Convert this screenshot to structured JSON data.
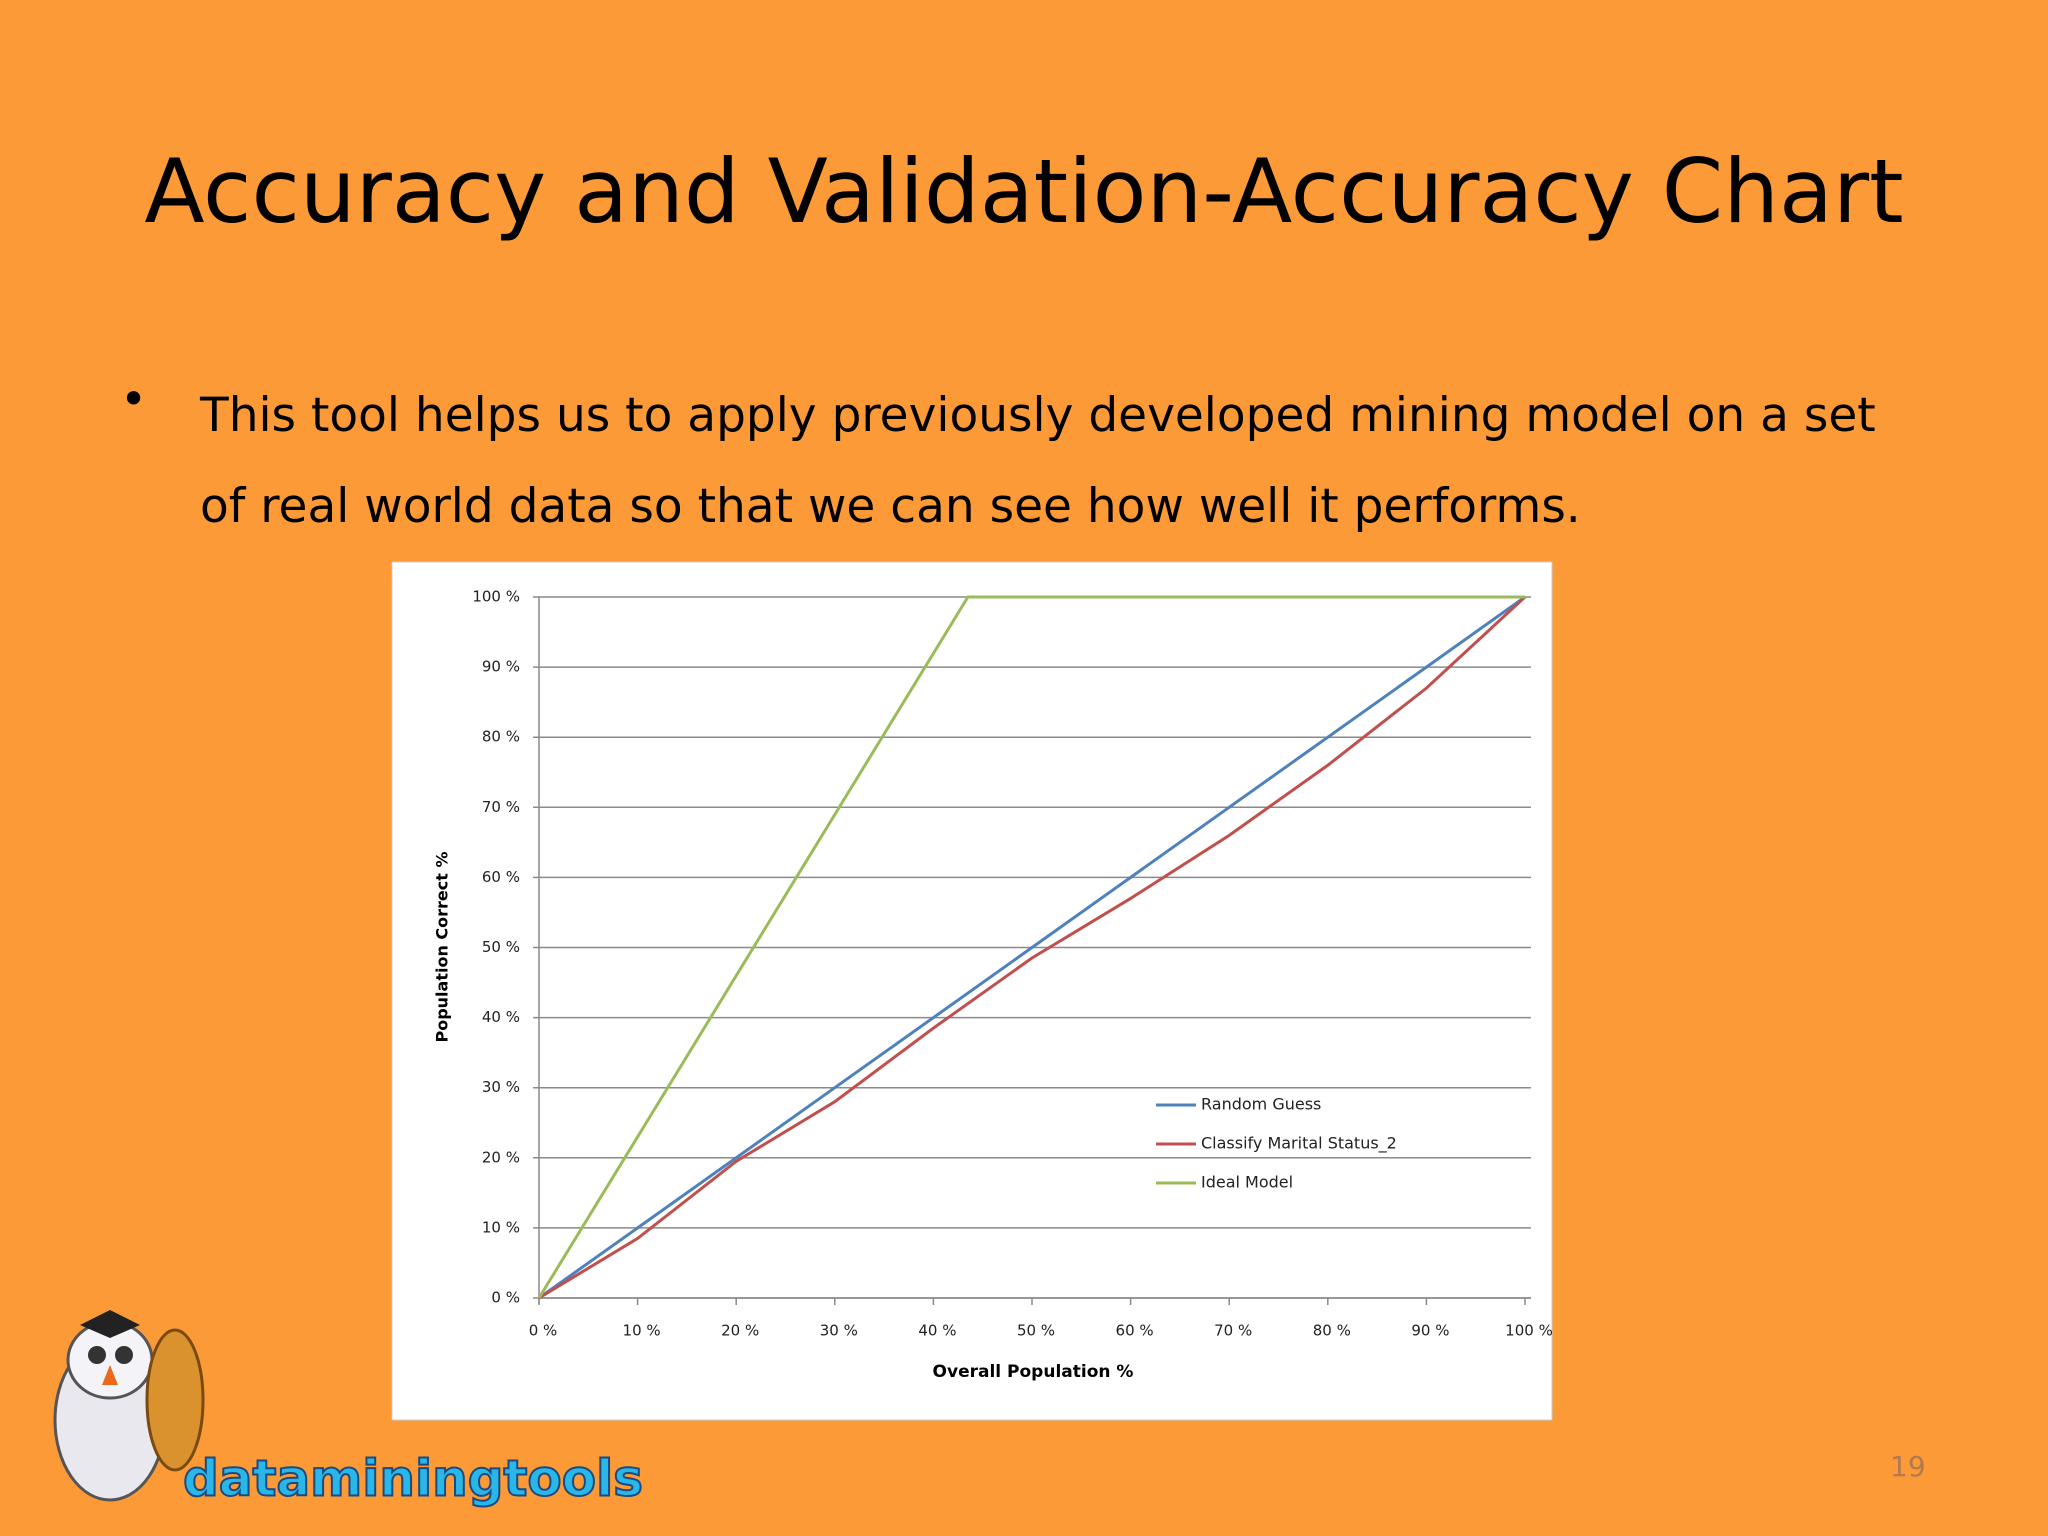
{
  "slide": {
    "title": "Accuracy and Validation-Accuracy Chart",
    "bullet": "This tool helps us to apply previously developed mining model on a set of real world data so that we can see how well it performs.",
    "page_number": "19",
    "logo": "dataminingtools"
  },
  "chart_data": {
    "type": "line",
    "x_label": "Overall Population %",
    "y_label": "Population Correct %",
    "xlim": [
      0,
      100
    ],
    "ylim": [
      0,
      100
    ],
    "xticks": [
      {
        "value": 0,
        "label": "0 %"
      },
      {
        "value": 10,
        "label": "10 %"
      },
      {
        "value": 20,
        "label": "20 %"
      },
      {
        "value": 30,
        "label": "30 %"
      },
      {
        "value": 40,
        "label": "40 %"
      },
      {
        "value": 50,
        "label": "50 %"
      },
      {
        "value": 60,
        "label": "60 %"
      },
      {
        "value": 70,
        "label": "70 %"
      },
      {
        "value": 80,
        "label": "80 %"
      },
      {
        "value": 90,
        "label": "90 %"
      },
      {
        "value": 100,
        "label": "100 %"
      }
    ],
    "yticks": [
      {
        "value": 0,
        "label": "0 %"
      },
      {
        "value": 10,
        "label": "10 %"
      },
      {
        "value": 20,
        "label": "20 %"
      },
      {
        "value": 30,
        "label": "30 %"
      },
      {
        "value": 40,
        "label": "40 %"
      },
      {
        "value": 50,
        "label": "50 %"
      },
      {
        "value": 60,
        "label": "60 %"
      },
      {
        "value": 70,
        "label": "70 %"
      },
      {
        "value": 80,
        "label": "80 %"
      },
      {
        "value": 90,
        "label": "90 %"
      },
      {
        "value": 100,
        "label": "100 %"
      }
    ],
    "grid": true,
    "legend": "lower right",
    "series": [
      {
        "name": "Random Guess",
        "color": "#4f81bd",
        "x": [
          0,
          100
        ],
        "y": [
          0,
          100
        ]
      },
      {
        "name": "Classify Marital  Status_2",
        "color": "#c0504d",
        "x": [
          0,
          10,
          20,
          30,
          40,
          50,
          60,
          70,
          80,
          90,
          100
        ],
        "y": [
          0,
          8.5,
          19.5,
          28,
          38.5,
          48.5,
          57,
          66,
          76,
          87,
          100
        ]
      },
      {
        "name": "Ideal Model",
        "color": "#9bbb59",
        "x": [
          0,
          43.5,
          100
        ],
        "y": [
          0,
          100,
          100
        ]
      }
    ]
  }
}
